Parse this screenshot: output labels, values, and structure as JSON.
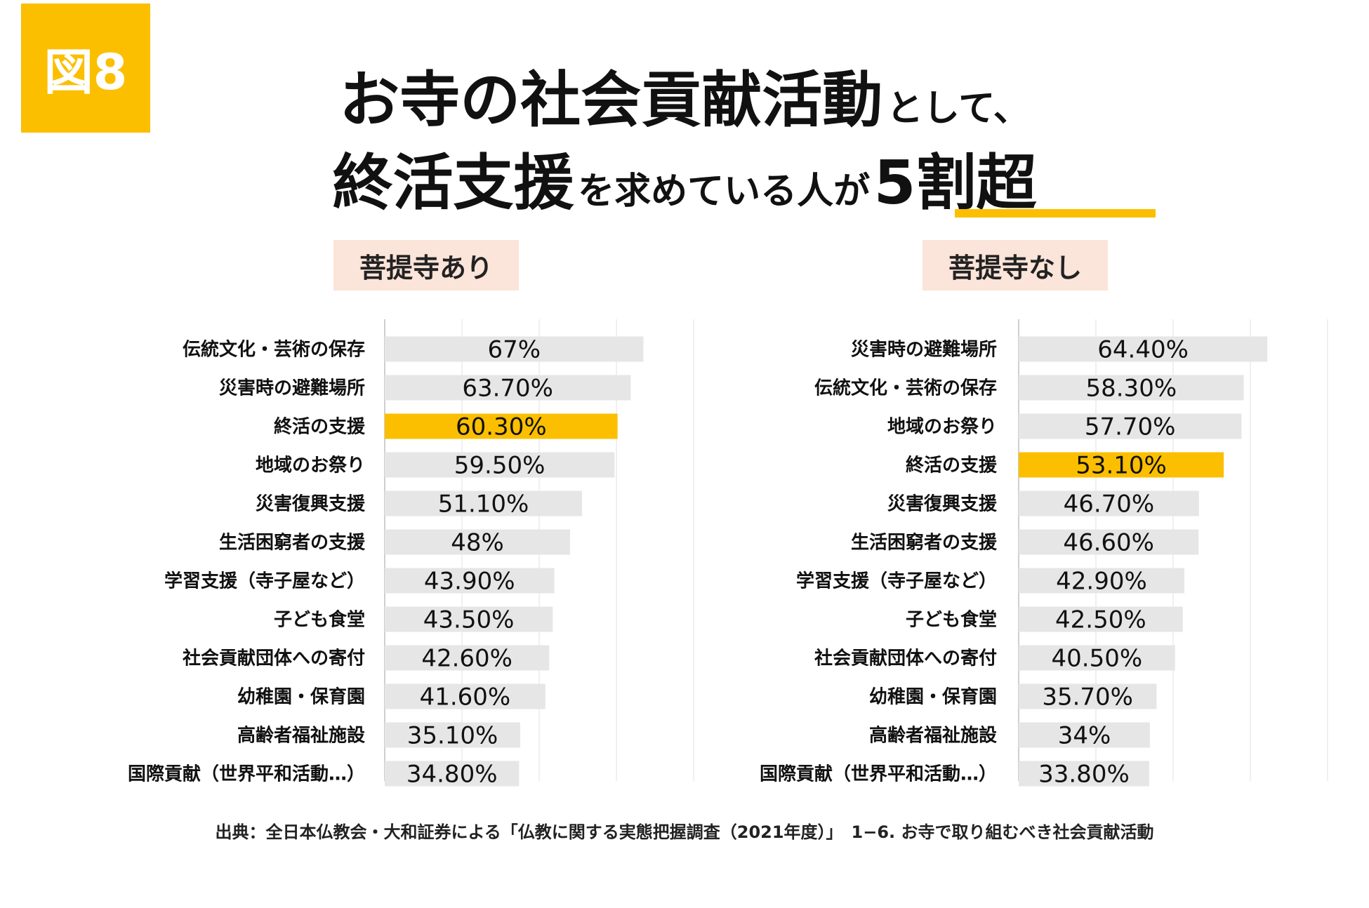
{
  "badge": "図8",
  "title": {
    "line1_big": "お寺の社会貢献活動",
    "line1_small": "として、",
    "line2_big": "終活支援",
    "line2_small": "を求めている人が",
    "line2_highlight": "5割超"
  },
  "source": "出典：全日本仏教会・大和証券による「仏教に関する実態把握調査（2021年度）」　1−6. お寺で取り組むべき社会貢献活動",
  "colors": {
    "accent": "#fbbf00",
    "bar": "#e6e6e6",
    "label_bg": "#fbe4d9"
  },
  "chart_data": [
    {
      "type": "bar",
      "orientation": "horizontal",
      "title": "菩提寺あり",
      "highlight": "終活の支援",
      "xlim": [
        0,
        80
      ],
      "categories": [
        "伝統文化・芸術の保存",
        "災害時の避難場所",
        "終活の支援",
        "地域のお祭り",
        "災害復興支援",
        "生活困窮者の支援",
        "学習支援（寺子屋など）",
        "子ども食堂",
        "社会貢献団体への寄付",
        "幼稚園・保育園",
        "高齢者福祉施設",
        "国際貢献（世界平和活動…）"
      ],
      "values": [
        67,
        63.7,
        60.3,
        59.5,
        51.1,
        48,
        43.9,
        43.5,
        42.6,
        41.6,
        35.1,
        34.8
      ],
      "labels": [
        "67%",
        "63.70%",
        "60.30%",
        "59.50%",
        "51.10%",
        "48%",
        "43.90%",
        "43.50%",
        "42.60%",
        "41.60%",
        "35.10%",
        "34.80%"
      ]
    },
    {
      "type": "bar",
      "orientation": "horizontal",
      "title": "菩提寺なし",
      "highlight": "終活の支援",
      "xlim": [
        0,
        80
      ],
      "categories": [
        "災害時の避難場所",
        "伝統文化・芸術の保存",
        "地域のお祭り",
        "終活の支援",
        "災害復興支援",
        "生活困窮者の支援",
        "学習支援（寺子屋など）",
        "子ども食堂",
        "社会貢献団体への寄付",
        "幼稚園・保育園",
        "高齢者福祉施設",
        "国際貢献（世界平和活動…）"
      ],
      "values": [
        64.4,
        58.3,
        57.7,
        53.1,
        46.7,
        46.6,
        42.9,
        42.5,
        40.5,
        35.7,
        34,
        33.8
      ],
      "labels": [
        "64.40%",
        "58.30%",
        "57.70%",
        "53.10%",
        "46.70%",
        "46.60%",
        "42.90%",
        "42.50%",
        "40.50%",
        "35.70%",
        "34%",
        "33.80%"
      ]
    }
  ]
}
